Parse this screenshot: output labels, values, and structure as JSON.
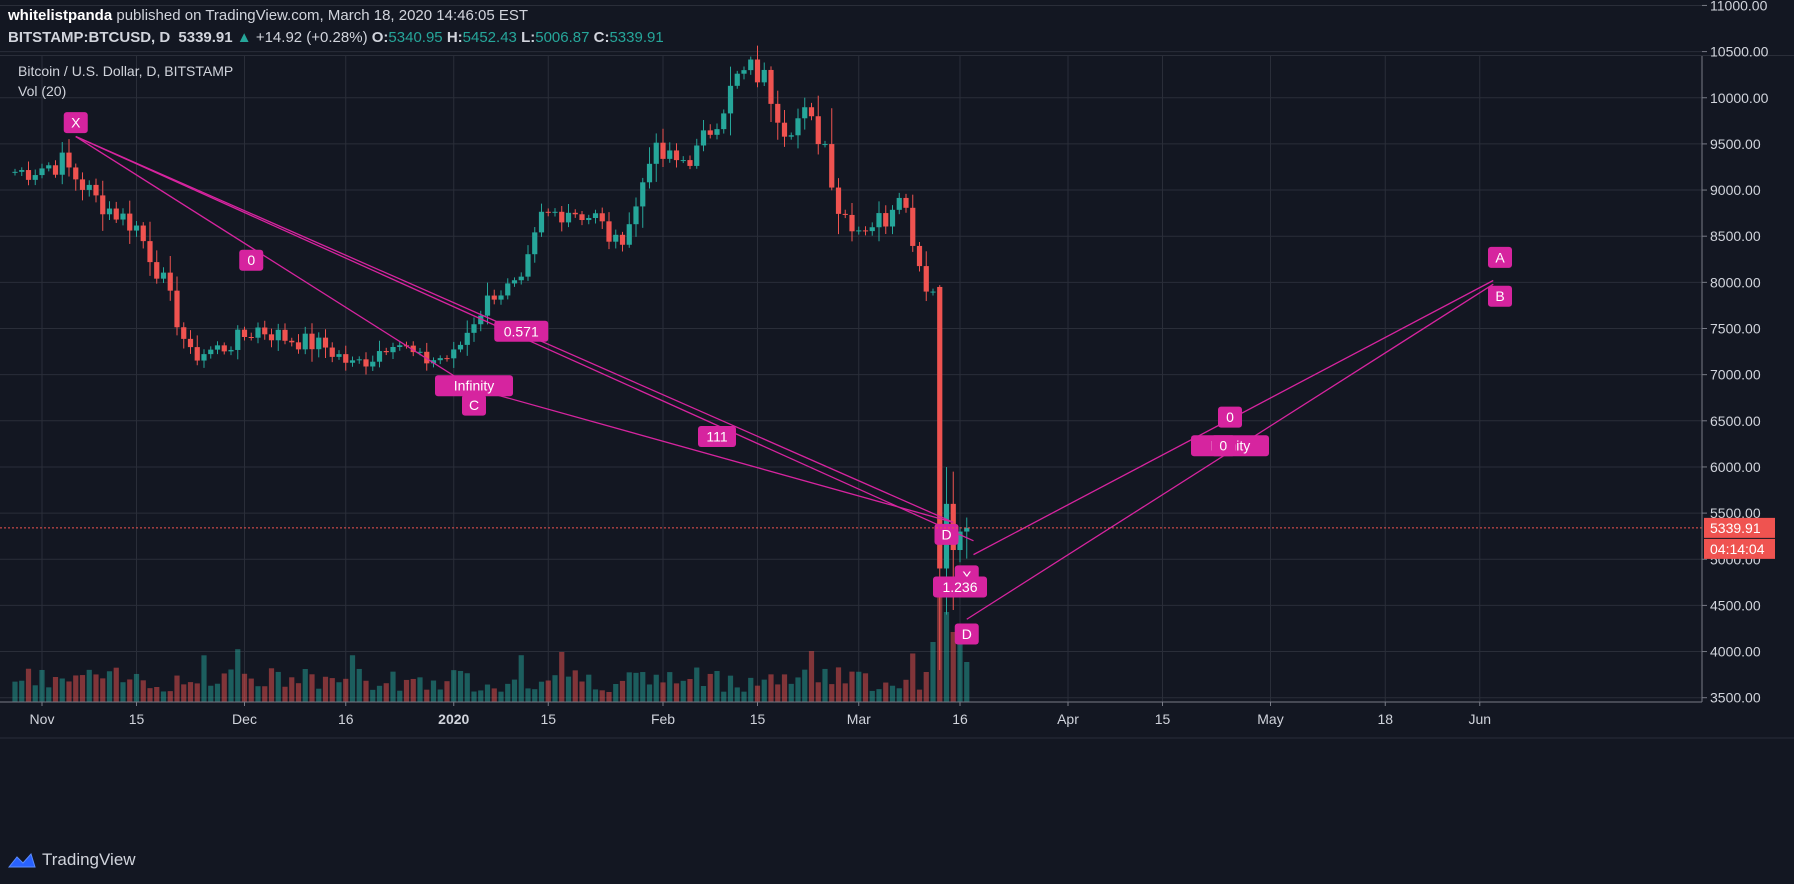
{
  "header": {
    "author": "whitelistpanda",
    "published": " published on TradingView.com, March 18, 2020 14:46:05 EST",
    "symbol": "BITSTAMP:BTCUSD, D",
    "last": "5339.91",
    "arrow": "▲",
    "change": "+14.92 (+0.28%)",
    "o_label": "O:",
    "o": "5340.95",
    "h_label": "H:",
    "h": "5452.43",
    "l_label": "L:",
    "l": "5006.87",
    "c_label": "C:",
    "c": "5339.91"
  },
  "footer": {
    "brand": "TradingView"
  },
  "colors": {
    "bg": "#131722",
    "grid": "#2a2e39",
    "up": "#26a69a",
    "down": "#ef5350",
    "pattern": "#d6249f",
    "text": "#d1d4dc"
  },
  "chart_data": {
    "type": "candlestick",
    "title": "Bitcoin / U.S. Dollar, D, BITSTAMP",
    "volume_label": "Vol (20)",
    "ylim": [
      3200,
      11200
    ],
    "y_ticks": [
      3500,
      4000,
      4500,
      5000,
      5500,
      6000,
      6500,
      7000,
      7500,
      8000,
      8500,
      9000,
      9500,
      10000,
      10500,
      11000
    ],
    "y_tick_labels": [
      "3500.00",
      "4000.00",
      "4500.00",
      "5000.00",
      "5500.00",
      "6000.00",
      "6500.00",
      "7000.00",
      "7500.00",
      "8000.00",
      "8500.00",
      "9000.00",
      "9500.00",
      "10000.00",
      "10500.00",
      "11000.00"
    ],
    "x_ticks": [
      {
        "day": 0,
        "label": "Nov"
      },
      {
        "day": 14,
        "label": "15"
      },
      {
        "day": 30,
        "label": "Dec"
      },
      {
        "day": 45,
        "label": "16"
      },
      {
        "day": 61,
        "label": "2020"
      },
      {
        "day": 75,
        "label": "15"
      },
      {
        "day": 92,
        "label": "Feb"
      },
      {
        "day": 106,
        "label": "15"
      },
      {
        "day": 121,
        "label": "Mar"
      },
      {
        "day": 136,
        "label": "16"
      },
      {
        "day": 152,
        "label": "Apr"
      },
      {
        "day": 166,
        "label": "15"
      },
      {
        "day": 182,
        "label": "May"
      },
      {
        "day": 199,
        "label": "18"
      },
      {
        "day": 213,
        "label": "Jun"
      }
    ],
    "last_price": 5339.91,
    "last_price_label": "5339.91",
    "countdown_label": "04:14:04",
    "anchors": [
      {
        "day": -3,
        "close": 9200
      },
      {
        "day": 3,
        "close": 9300
      },
      {
        "day": 8,
        "close": 8900
      },
      {
        "day": 14,
        "close": 8600
      },
      {
        "day": 18,
        "close": 8000
      },
      {
        "day": 22,
        "close": 7200
      },
      {
        "day": 27,
        "close": 7300
      },
      {
        "day": 32,
        "close": 7500
      },
      {
        "day": 36,
        "close": 7400
      },
      {
        "day": 42,
        "close": 7300
      },
      {
        "day": 46,
        "close": 7100
      },
      {
        "day": 49,
        "close": 7200
      },
      {
        "day": 52,
        "close": 7400
      },
      {
        "day": 56,
        "close": 7150
      },
      {
        "day": 61,
        "close": 7200
      },
      {
        "day": 64,
        "close": 7600
      },
      {
        "day": 67,
        "close": 7900
      },
      {
        "day": 71,
        "close": 7950
      },
      {
        "day": 74,
        "close": 8700
      },
      {
        "day": 78,
        "close": 8800
      },
      {
        "day": 82,
        "close": 8700
      },
      {
        "day": 85,
        "close": 8400
      },
      {
        "day": 88,
        "close": 8800
      },
      {
        "day": 90,
        "close": 9400
      },
      {
        "day": 94,
        "close": 9300
      },
      {
        "day": 97,
        "close": 9400
      },
      {
        "day": 100,
        "close": 9800
      },
      {
        "day": 103,
        "close": 10200
      },
      {
        "day": 105,
        "close": 10300
      },
      {
        "day": 107,
        "close": 10200
      },
      {
        "day": 110,
        "close": 9700
      },
      {
        "day": 113,
        "close": 9800
      },
      {
        "day": 116,
        "close": 9500
      },
      {
        "day": 118,
        "close": 8800
      },
      {
        "day": 121,
        "close": 8600
      },
      {
        "day": 125,
        "close": 8700
      },
      {
        "day": 127,
        "close": 9050
      },
      {
        "day": 129,
        "close": 8500
      },
      {
        "day": 131,
        "close": 7900
      },
      {
        "day": 132,
        "close": 7900
      },
      {
        "day": 133,
        "close": 4900
      },
      {
        "day": 134,
        "close": 5600
      },
      {
        "day": 135,
        "close": 5100
      },
      {
        "day": 136,
        "close": 5300
      },
      {
        "day": 137,
        "close": 5340
      }
    ],
    "pattern_lines": [
      [
        [
          5,
          9580
        ],
        [
          64,
          6850
        ]
      ],
      [
        [
          5,
          9580
        ],
        [
          135,
          5400
        ]
      ],
      [
        [
          64,
          6850
        ],
        [
          135,
          5400
        ]
      ],
      [
        [
          5,
          9580
        ],
        [
          138,
          5200
        ]
      ],
      [
        [
          138,
          5050
        ],
        [
          215,
          8020
        ]
      ],
      [
        [
          137,
          4350
        ],
        [
          215,
          7980
        ]
      ]
    ],
    "pattern_labels": [
      {
        "text": "X",
        "day": 5,
        "price": 9730
      },
      {
        "text": "0",
        "day": 31,
        "price": 8240
      },
      {
        "text": "0.571",
        "day": 71,
        "price": 7470
      },
      {
        "text": "Infinity",
        "day": 64,
        "price": 6880
      },
      {
        "text": "C",
        "day": 64,
        "price": 6670
      },
      {
        "text": "111",
        "day": 100,
        "price": 6330
      },
      {
        "text": "D",
        "day": 134,
        "price": 5270
      },
      {
        "text": "X",
        "day": 137,
        "price": 4820
      },
      {
        "text": "1.236",
        "day": 136,
        "price": 4700
      },
      {
        "text": "D",
        "day": 137,
        "price": 4190
      },
      {
        "text": "0",
        "day": 176,
        "price": 6540
      },
      {
        "text": "Infinity",
        "day": 176,
        "price": 6230
      },
      {
        "text": "0",
        "day": 175,
        "price": 6230
      },
      {
        "text": "A",
        "day": 216,
        "price": 8270
      },
      {
        "text": "B",
        "day": 216,
        "price": 7850
      }
    ]
  }
}
